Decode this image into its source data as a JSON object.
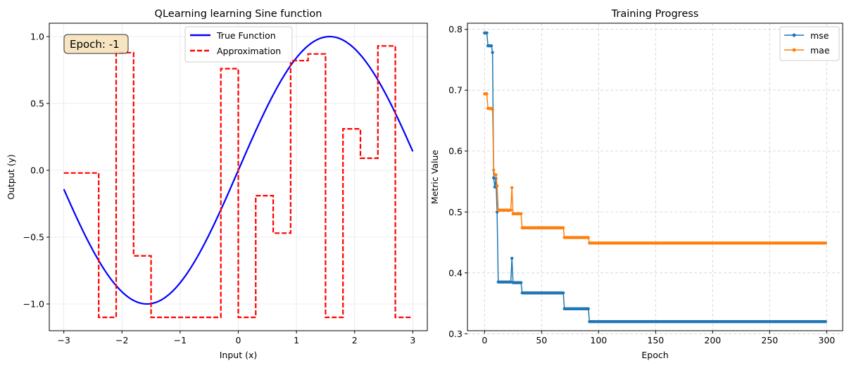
{
  "chart_data": [
    {
      "type": "line",
      "title": "QLearning learning Sine function",
      "xlabel": "Input (x)",
      "ylabel": "Output (y)",
      "xlim": [
        -3.25,
        3.25
      ],
      "ylim": [
        -1.2,
        1.1
      ],
      "xticks": [
        -3,
        -2,
        -1,
        0,
        1,
        2,
        3
      ],
      "xtick_labels": [
        "−3",
        "−2",
        "−1",
        "0",
        "1",
        "2",
        "3"
      ],
      "yticks": [
        -1.0,
        -0.5,
        0.0,
        0.5,
        1.0
      ],
      "ytick_labels": [
        "−1.0",
        "−0.5",
        "0.0",
        "0.5",
        "1.0"
      ],
      "grid": true,
      "legend_position": "upper center",
      "annotation": "Epoch: -1",
      "series": [
        {
          "name": "True Function",
          "style": "solid",
          "color": "#0000ff",
          "function": "sin",
          "x_range": [
            -3,
            3
          ]
        },
        {
          "name": "Approximation",
          "style": "dashed",
          "color": "#ff0000",
          "x": [
            -3.0,
            -2.4,
            -2.4,
            -2.1,
            -2.1,
            -1.8,
            -1.8,
            -1.5,
            -1.5,
            -0.3,
            -0.3,
            0.0,
            0.0,
            0.3,
            0.3,
            0.6,
            0.6,
            0.9,
            0.9,
            1.2,
            1.2,
            1.5,
            1.5,
            1.8,
            1.8,
            2.1,
            2.1,
            2.4,
            2.4,
            2.7,
            2.7,
            3.0
          ],
          "y": [
            -0.02,
            -0.02,
            -1.1,
            -1.1,
            0.88,
            0.88,
            -0.64,
            -0.64,
            -1.1,
            -1.1,
            0.76,
            0.76,
            -1.1,
            -1.1,
            -0.19,
            -0.19,
            -0.47,
            -0.47,
            0.82,
            0.82,
            0.87,
            0.87,
            -1.1,
            -1.1,
            0.31,
            0.31,
            0.09,
            0.09,
            0.93,
            0.93,
            -1.1,
            -1.1
          ]
        }
      ]
    },
    {
      "type": "line",
      "title": "Training Progress",
      "xlabel": "Epoch",
      "ylabel": "Metric Value",
      "xlim": [
        -15,
        314
      ],
      "ylim": [
        0.305,
        0.81
      ],
      "xticks": [
        0,
        50,
        100,
        150,
        200,
        250,
        300
      ],
      "xtick_labels": [
        "0",
        "50",
        "100",
        "150",
        "200",
        "250",
        "300"
      ],
      "yticks": [
        0.3,
        0.4,
        0.5,
        0.6,
        0.7,
        0.8
      ],
      "ytick_labels": [
        "0.3",
        "0.4",
        "0.5",
        "0.6",
        "0.7",
        "0.8"
      ],
      "grid": true,
      "grid_style": "dashed",
      "legend_position": "upper right",
      "epochs": [
        0,
        299
      ],
      "series": [
        {
          "name": "mse",
          "color": "#1f77b4",
          "marker": "circle",
          "points": [
            [
              0,
              0.794
            ],
            [
              3,
              0.794
            ],
            [
              3,
              0.773
            ],
            [
              6,
              0.773
            ],
            [
              7,
              0.762
            ],
            [
              8,
              0.556
            ],
            [
              9,
              0.541
            ],
            [
              10,
              0.555
            ],
            [
              11,
              0.5
            ],
            [
              12,
              0.385
            ],
            [
              24,
              0.385
            ],
            [
              24,
              0.424
            ],
            [
              25,
              0.384
            ],
            [
              32,
              0.384
            ],
            [
              33,
              0.367
            ],
            [
              70,
              0.367
            ],
            [
              70,
              0.341
            ],
            [
              91,
              0.341
            ],
            [
              92,
              0.32
            ],
            [
              299,
              0.32
            ]
          ]
        },
        {
          "name": "mae",
          "color": "#ff7f0e",
          "marker": "circle",
          "points": [
            [
              0,
              0.694
            ],
            [
              3,
              0.694
            ],
            [
              3,
              0.67
            ],
            [
              6,
              0.67
            ],
            [
              7,
              0.668
            ],
            [
              8,
              0.569
            ],
            [
              9,
              0.561
            ],
            [
              10,
              0.561
            ],
            [
              11,
              0.543
            ],
            [
              12,
              0.503
            ],
            [
              24,
              0.503
            ],
            [
              24,
              0.54
            ],
            [
              25,
              0.497
            ],
            [
              32,
              0.497
            ],
            [
              33,
              0.474
            ],
            [
              70,
              0.474
            ],
            [
              70,
              0.458
            ],
            [
              91,
              0.458
            ],
            [
              92,
              0.449
            ],
            [
              299,
              0.449
            ]
          ]
        }
      ]
    }
  ]
}
